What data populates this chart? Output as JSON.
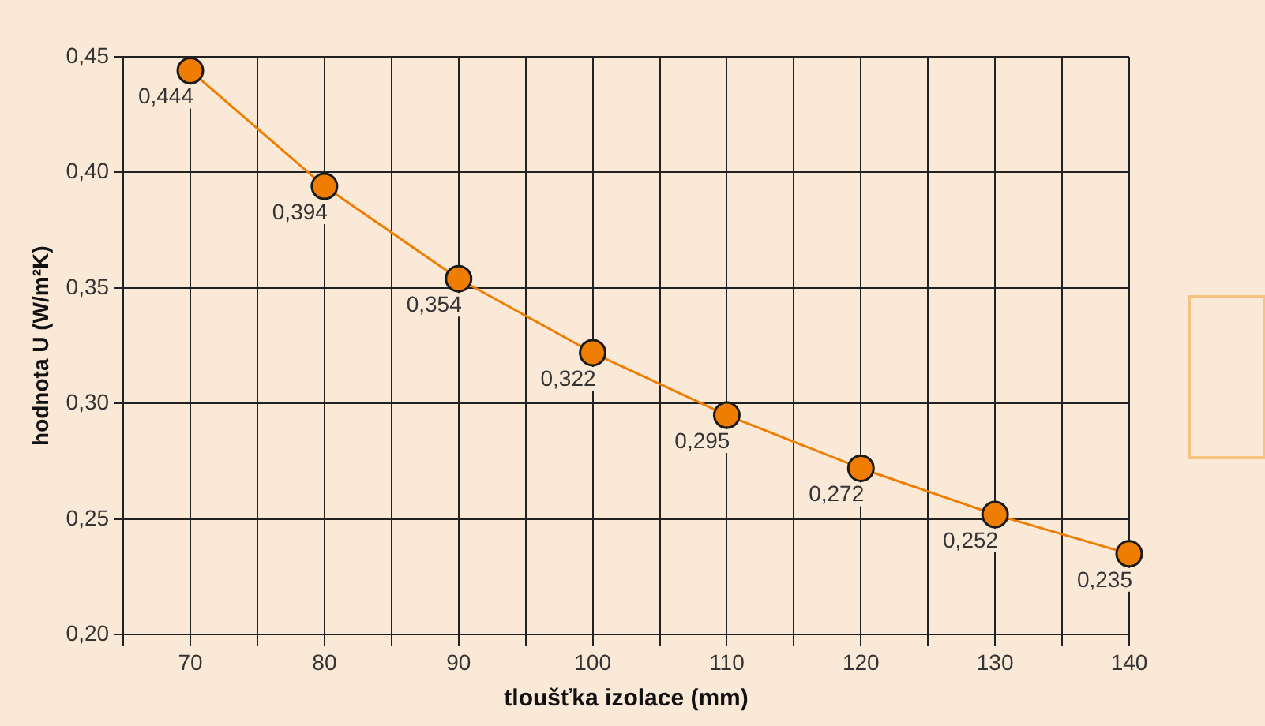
{
  "chart_data": {
    "type": "line",
    "xlabel": "tloušťka izolace (mm)",
    "ylabel": "hodnota U (W/m²K)",
    "x": [
      70,
      80,
      90,
      100,
      110,
      120,
      130,
      140
    ],
    "series": [
      {
        "color": "#ee7d00",
        "values": [
          0.444,
          0.394,
          0.354,
          0.322,
          0.295,
          0.272,
          0.252,
          0.235
        ],
        "value_labels": [
          "0,444",
          "0,394",
          "0,354",
          "0,322",
          "0,295",
          "0,272",
          "0,252",
          "0,235"
        ]
      }
    ],
    "xlim": [
      65,
      140
    ],
    "xticks": [
      {
        "value": 65,
        "label": null
      },
      70,
      {
        "value": 75,
        "label": null
      },
      80,
      {
        "value": 85,
        "label": null
      },
      90,
      {
        "value": 95,
        "label": null
      },
      100,
      {
        "value": 105,
        "label": null
      },
      110,
      {
        "value": 115,
        "label": null
      },
      120,
      {
        "value": 125,
        "label": null
      },
      130,
      {
        "value": 135,
        "label": null
      },
      140
    ],
    "ylim": [
      0.2,
      0.45
    ],
    "yticks": [
      {
        "value": 0.2,
        "label": "0,20"
      },
      {
        "value": 0.25,
        "label": "0,25"
      },
      {
        "value": 0.3,
        "label": "0,30"
      },
      {
        "value": 0.35,
        "label": "0,35"
      },
      {
        "value": 0.4,
        "label": "0,40"
      },
      {
        "value": 0.45,
        "label": "0,45"
      }
    ],
    "grid": true,
    "marker": "circle",
    "line_style": "solid"
  }
}
